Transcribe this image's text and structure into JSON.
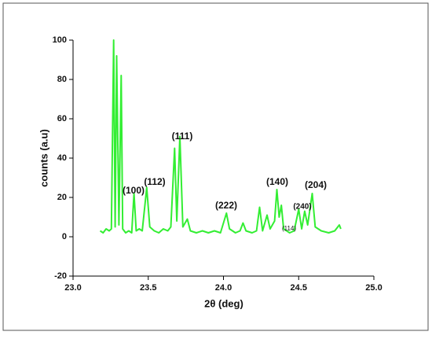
{
  "chart_data": {
    "type": "line",
    "x_label": "2θ (deg)",
    "y_label": "counts (a.u)",
    "color": "#33ee33",
    "x": [
      23.18,
      23.2,
      23.22,
      23.24,
      23.255,
      23.27,
      23.28,
      23.29,
      23.305,
      23.32,
      23.33,
      23.35,
      23.37,
      23.39,
      23.405,
      23.42,
      23.44,
      23.46,
      23.49,
      23.51,
      23.54,
      23.57,
      23.6,
      23.63,
      23.65,
      23.675,
      23.69,
      23.71,
      23.73,
      23.76,
      23.78,
      23.82,
      23.86,
      23.9,
      23.94,
      23.98,
      24.02,
      24.04,
      24.08,
      24.11,
      24.13,
      24.15,
      24.19,
      24.22,
      24.24,
      24.26,
      24.29,
      24.31,
      24.34,
      24.355,
      24.37,
      24.385,
      24.4,
      24.44,
      24.47,
      24.5,
      24.52,
      24.54,
      24.56,
      24.59,
      24.61,
      24.65,
      24.7,
      24.74,
      24.77,
      24.78
    ],
    "values": [
      3,
      2,
      4,
      3,
      4,
      100,
      5,
      92,
      6,
      82,
      4,
      2,
      3,
      2,
      22,
      3,
      4,
      3,
      25,
      5,
      3,
      2,
      4,
      3,
      5,
      45,
      8,
      51,
      5,
      9,
      3,
      2,
      3,
      2,
      3,
      2,
      12,
      4,
      2,
      3,
      7,
      3,
      2,
      3,
      15,
      3,
      11,
      4,
      8,
      24,
      10,
      16,
      4,
      2,
      3,
      14,
      4,
      13,
      6,
      22,
      5,
      3,
      2,
      3,
      6,
      4
    ],
    "xlim": [
      23,
      25
    ],
    "xticks": [
      {
        "value": 23,
        "label": "23.0"
      },
      {
        "value": 23.5,
        "label": "23.5"
      },
      {
        "value": 24,
        "label": "24.0"
      },
      {
        "value": 24.5,
        "label": "24.5"
      },
      {
        "value": 25,
        "label": "25.0"
      }
    ],
    "ylim": [
      -20,
      100
    ],
    "yticks": [
      -20,
      0,
      20,
      40,
      60,
      80,
      100
    ],
    "annotations": [
      "(100)",
      "(112)",
      "(111)",
      "(222)",
      "(140)",
      "(240)",
      "(114)",
      "(204)"
    ]
  }
}
